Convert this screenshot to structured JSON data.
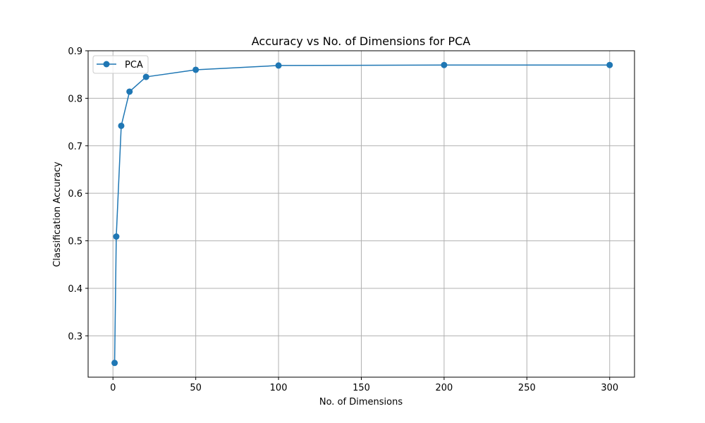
{
  "chart_data": {
    "type": "line",
    "title": "Accuracy vs No. of Dimensions for PCA",
    "xlabel": "No. of Dimensions",
    "ylabel": "Classification Accuracy",
    "xlim": [
      -15,
      315
    ],
    "ylim": [
      0.213,
      0.9
    ],
    "xticks": [
      0,
      50,
      100,
      150,
      200,
      250,
      300
    ],
    "xtick_labels": [
      "0",
      "50",
      "100",
      "150",
      "200",
      "250",
      "300"
    ],
    "yticks": [
      0.3,
      0.4,
      0.5,
      0.6,
      0.7,
      0.8,
      0.9
    ],
    "ytick_labels": [
      "0.3",
      "0.4",
      "0.5",
      "0.6",
      "0.7",
      "0.8",
      "0.9"
    ],
    "grid": true,
    "legend_position": "upper left",
    "series": [
      {
        "name": "PCA",
        "color": "#1f77b4",
        "marker": "circle",
        "x": [
          1,
          2,
          5,
          10,
          20,
          50,
          100,
          200,
          300
        ],
        "y": [
          0.243,
          0.509,
          0.742,
          0.814,
          0.845,
          0.86,
          0.869,
          0.87,
          0.87
        ]
      }
    ]
  }
}
